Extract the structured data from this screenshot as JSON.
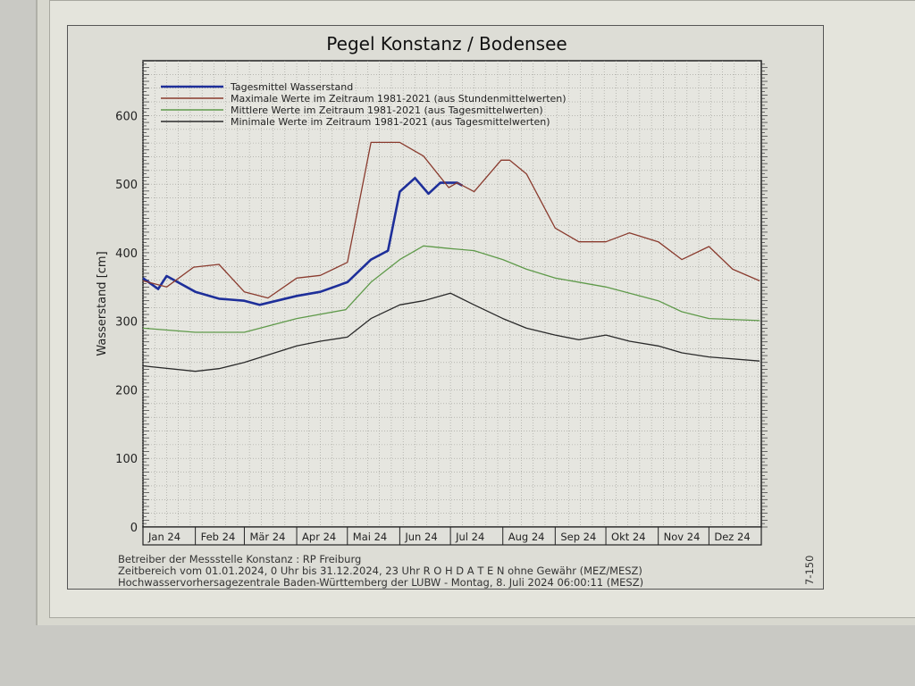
{
  "chart_data": {
    "type": "line",
    "title": "Pegel Konstanz / Bodensee",
    "ylabel": "Wasserstand [cm]",
    "xlabel": "",
    "ylim": [
      0,
      680
    ],
    "xlim": [
      "2024-01-01",
      "2024-12-31"
    ],
    "yticks": [
      0,
      100,
      200,
      300,
      400,
      500,
      600
    ],
    "xtick_labels": [
      "Jan 24",
      "Feb 24",
      "Mär 24",
      "Apr 24",
      "Mai 24",
      "Jun 24",
      "Jul 24",
      "Aug 24",
      "Sep 24",
      "Okt 24",
      "Nov 24",
      "Dez 24"
    ],
    "grid": true,
    "legend_position": "top-left",
    "series": [
      {
        "name": "Tagesmittel Wasserstand",
        "color": "#1e2f9a",
        "x": [
          "2024-01-01",
          "2024-01-10",
          "2024-01-15",
          "2024-02-01",
          "2024-02-15",
          "2024-03-01",
          "2024-03-10",
          "2024-04-01",
          "2024-04-15",
          "2024-05-01",
          "2024-05-15",
          "2024-05-25",
          "2024-06-01",
          "2024-06-10",
          "2024-06-18",
          "2024-06-25",
          "2024-07-05",
          "2024-07-08"
        ],
        "y": [
          363,
          347,
          366,
          343,
          333,
          330,
          324,
          337,
          343,
          357,
          390,
          403,
          489,
          509,
          486,
          502,
          502,
          498
        ]
      },
      {
        "name": "Maximale Werte im Zeitraum 1981-2021 (aus Stundenmittelwerten)",
        "color": "#8a3b2e",
        "x": [
          "2024-01-01",
          "2024-01-15",
          "2024-01-31",
          "2024-02-15",
          "2024-03-01",
          "2024-03-15",
          "2024-04-01",
          "2024-04-15",
          "2024-05-01",
          "2024-05-15",
          "2024-06-01",
          "2024-06-15",
          "2024-06-30",
          "2024-07-05",
          "2024-07-15",
          "2024-07-31",
          "2024-08-05",
          "2024-08-15",
          "2024-09-01",
          "2024-09-15",
          "2024-10-01",
          "2024-10-15",
          "2024-11-01",
          "2024-11-15",
          "2024-12-01",
          "2024-12-15",
          "2024-12-31"
        ],
        "y": [
          359,
          350,
          379,
          383,
          343,
          334,
          363,
          367,
          386,
          561,
          561,
          541,
          495,
          502,
          489,
          535,
          535,
          515,
          436,
          416,
          416,
          429,
          416,
          390,
          409,
          376,
          359
        ]
      },
      {
        "name": "Mittlere Werte im Zeitraum 1981-2021 (aus Tagesmittelwerten)",
        "color": "#5f9a4a",
        "x": [
          "2024-01-01",
          "2024-02-01",
          "2024-03-01",
          "2024-04-01",
          "2024-04-30",
          "2024-05-15",
          "2024-06-01",
          "2024-06-15",
          "2024-07-01",
          "2024-07-15",
          "2024-08-01",
          "2024-08-15",
          "2024-09-01",
          "2024-10-01",
          "2024-11-01",
          "2024-11-15",
          "2024-12-01",
          "2024-12-31"
        ],
        "y": [
          290,
          284,
          284,
          304,
          317,
          357,
          390,
          410,
          406,
          403,
          390,
          376,
          363,
          350,
          330,
          314,
          304,
          301
        ]
      },
      {
        "name": "Minimale Werte im Zeitraum 1981-2021 (aus Tagesmittelwerten)",
        "color": "#2a2a2a",
        "x": [
          "2024-01-01",
          "2024-02-01",
          "2024-02-15",
          "2024-03-01",
          "2024-04-01",
          "2024-04-15",
          "2024-05-01",
          "2024-05-15",
          "2024-06-01",
          "2024-06-15",
          "2024-07-01",
          "2024-07-15",
          "2024-08-01",
          "2024-08-15",
          "2024-09-01",
          "2024-09-15",
          "2024-10-01",
          "2024-10-15",
          "2024-11-01",
          "2024-11-15",
          "2024-12-01",
          "2024-12-31"
        ],
        "y": [
          235,
          227,
          231,
          240,
          264,
          271,
          277,
          304,
          324,
          330,
          341,
          324,
          304,
          290,
          280,
          273,
          280,
          271,
          264,
          254,
          248,
          242
        ]
      }
    ]
  },
  "footer": {
    "line1": "Betreiber der Messstelle Konstanz : RP Freiburg",
    "line2": "Zeitbereich vom 01.01.2024, 0 Uhr bis 31.12.2024, 23 Uhr    R O H D A T E N ohne Gewähr (MEZ/MESZ)",
    "line3": "Hochwasservorhersagezentrale Baden-Württemberg der LUBW -  Montag, 8. Juli 2024 06:00:11 (MESZ)",
    "side_code": "7-150"
  }
}
